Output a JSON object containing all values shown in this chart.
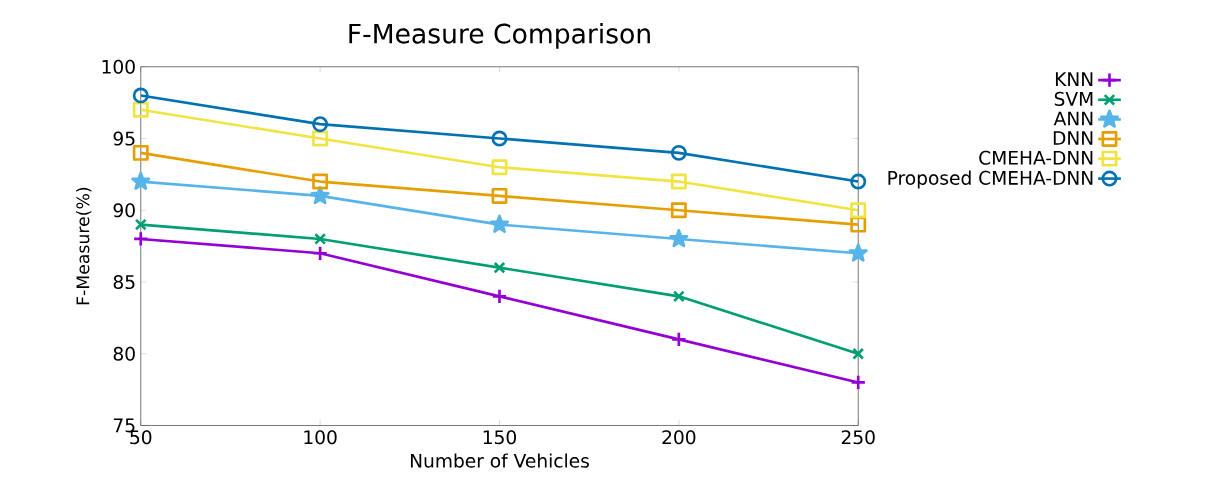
{
  "chart_data": {
    "type": "line",
    "title": "F-Measure Comparison",
    "xlabel": "Number of Vehicles",
    "ylabel": "F-Measure(%)",
    "x": [
      50,
      100,
      150,
      200,
      250
    ],
    "series": [
      {
        "name": "KNN",
        "color": "#9400d3",
        "marker": "plus",
        "values": [
          88,
          87,
          84,
          81,
          78
        ]
      },
      {
        "name": "SVM",
        "color": "#009e73",
        "marker": "cross",
        "values": [
          89,
          88,
          86,
          84,
          80
        ]
      },
      {
        "name": "ANN",
        "color": "#56b4e9",
        "marker": "star",
        "values": [
          92,
          91,
          89,
          88,
          87
        ]
      },
      {
        "name": "DNN",
        "color": "#e69f00",
        "marker": "square",
        "values": [
          94,
          92,
          91,
          90,
          89
        ]
      },
      {
        "name": "CMEHA-DNN",
        "color": "#f0e442",
        "marker": "square",
        "values": [
          97,
          95,
          93,
          92,
          90
        ]
      },
      {
        "name": "Proposed CMEHA-DNN",
        "color": "#0072b2",
        "marker": "circle",
        "values": [
          98,
          96,
          95,
          94,
          92
        ]
      }
    ],
    "xlim": [
      50,
      250
    ],
    "ylim": [
      75,
      100
    ],
    "xticks": [
      50,
      100,
      150,
      200,
      250
    ],
    "yticks": [
      75,
      80,
      85,
      90,
      95,
      100
    ],
    "grid": false,
    "legend": "right",
    "line_style": "solid"
  }
}
